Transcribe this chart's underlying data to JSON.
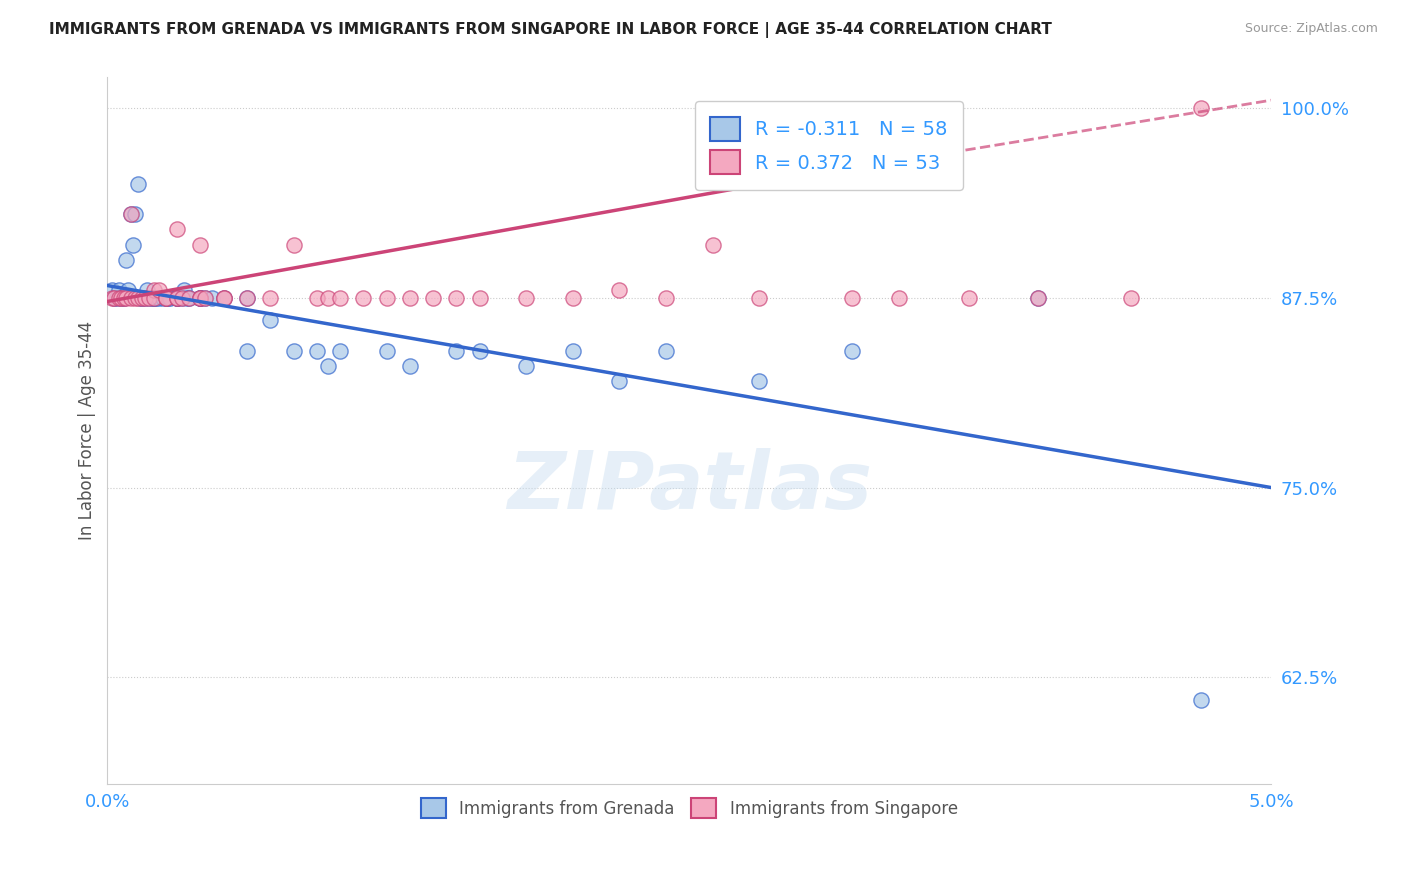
{
  "title": "IMMIGRANTS FROM GRENADA VS IMMIGRANTS FROM SINGAPORE IN LABOR FORCE | AGE 35-44 CORRELATION CHART",
  "source": "Source: ZipAtlas.com",
  "ylabel": "In Labor Force | Age 35-44",
  "ytick_labels": [
    "100.0%",
    "87.5%",
    "75.0%",
    "62.5%"
  ],
  "ytick_values": [
    1.0,
    0.875,
    0.75,
    0.625
  ],
  "xlim": [
    0.0,
    0.05
  ],
  "ylim": [
    0.555,
    1.02
  ],
  "R_grenada": -0.311,
  "N_grenada": 58,
  "R_singapore": 0.372,
  "N_singapore": 53,
  "color_grenada": "#a8c8e8",
  "color_singapore": "#f4a8c0",
  "line_color_grenada": "#3366cc",
  "line_color_singapore": "#cc4477",
  "grenada_x": [
    0.0002,
    0.0003,
    0.0004,
    0.0005,
    0.0006,
    0.0007,
    0.0008,
    0.0009,
    0.001,
    0.0011,
    0.0012,
    0.0013,
    0.0014,
    0.0015,
    0.0016,
    0.0017,
    0.0018,
    0.0019,
    0.002,
    0.002,
    0.0021,
    0.0022,
    0.0024,
    0.0025,
    0.0026,
    0.0027,
    0.003,
    0.003,
    0.003,
    0.0032,
    0.0033,
    0.0034,
    0.0035,
    0.004,
    0.004,
    0.004,
    0.0042,
    0.0045,
    0.005,
    0.006,
    0.006,
    0.007,
    0.008,
    0.009,
    0.0095,
    0.01,
    0.012,
    0.013,
    0.015,
    0.016,
    0.018,
    0.02,
    0.022,
    0.024,
    0.028,
    0.032,
    0.04,
    0.047
  ],
  "grenada_y": [
    0.88,
    0.875,
    0.875,
    0.88,
    0.875,
    0.875,
    0.9,
    0.88,
    0.93,
    0.91,
    0.93,
    0.95,
    0.875,
    0.875,
    0.875,
    0.88,
    0.875,
    0.875,
    0.875,
    0.875,
    0.875,
    0.875,
    0.875,
    0.875,
    0.875,
    0.875,
    0.875,
    0.875,
    0.875,
    0.875,
    0.88,
    0.875,
    0.875,
    0.875,
    0.875,
    0.875,
    0.875,
    0.875,
    0.875,
    0.875,
    0.84,
    0.86,
    0.84,
    0.84,
    0.83,
    0.84,
    0.84,
    0.83,
    0.84,
    0.84,
    0.83,
    0.84,
    0.82,
    0.84,
    0.82,
    0.84,
    0.875,
    0.61
  ],
  "singapore_x": [
    0.0002,
    0.0003,
    0.0005,
    0.0006,
    0.0007,
    0.0008,
    0.001,
    0.001,
    0.0012,
    0.0013,
    0.0015,
    0.0016,
    0.0018,
    0.002,
    0.002,
    0.0022,
    0.0025,
    0.0025,
    0.003,
    0.003,
    0.003,
    0.0032,
    0.0035,
    0.004,
    0.004,
    0.004,
    0.0042,
    0.005,
    0.005,
    0.006,
    0.007,
    0.008,
    0.009,
    0.0095,
    0.01,
    0.011,
    0.012,
    0.013,
    0.014,
    0.015,
    0.016,
    0.018,
    0.02,
    0.022,
    0.024,
    0.026,
    0.028,
    0.032,
    0.034,
    0.037,
    0.04,
    0.044,
    0.047
  ],
  "singapore_y": [
    0.875,
    0.875,
    0.875,
    0.875,
    0.875,
    0.875,
    0.93,
    0.875,
    0.875,
    0.875,
    0.875,
    0.875,
    0.875,
    0.88,
    0.875,
    0.88,
    0.875,
    0.875,
    0.875,
    0.875,
    0.92,
    0.875,
    0.875,
    0.875,
    0.875,
    0.91,
    0.875,
    0.875,
    0.875,
    0.875,
    0.875,
    0.91,
    0.875,
    0.875,
    0.875,
    0.875,
    0.875,
    0.875,
    0.875,
    0.875,
    0.875,
    0.875,
    0.875,
    0.88,
    0.875,
    0.91,
    0.875,
    0.875,
    0.875,
    0.875,
    0.875,
    0.875,
    1.0
  ],
  "grenada_line_x0": 0.0,
  "grenada_line_y0": 0.883,
  "grenada_line_x1": 0.05,
  "grenada_line_y1": 0.75,
  "singapore_line_solid_x0": 0.0,
  "singapore_line_solid_y0": 0.8725,
  "singapore_line_solid_x1": 0.03,
  "singapore_line_solid_y1": 0.955,
  "singapore_line_dash_x0": 0.03,
  "singapore_line_dash_y0": 0.955,
  "singapore_line_dash_x1": 0.05,
  "singapore_line_dash_y1": 1.005,
  "watermark": "ZIPatlas"
}
